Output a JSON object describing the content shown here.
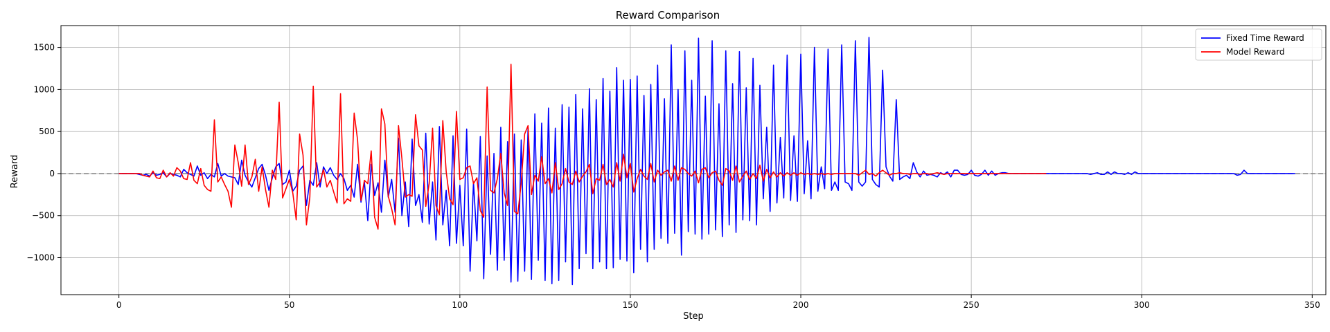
{
  "chart_data": {
    "type": "line",
    "title": "Reward Comparison",
    "xlabel": "Step",
    "ylabel": "Reward",
    "xlim": [
      -17,
      354
    ],
    "ylim": [
      -1440,
      1760
    ],
    "xticks": [
      0,
      50,
      100,
      150,
      200,
      250,
      300,
      350
    ],
    "yticks": [
      -1000,
      -500,
      0,
      500,
      1000,
      1500
    ],
    "grid": true,
    "legend_position": "top-right",
    "reference_line": {
      "y": 0,
      "style": "dashed",
      "color": "#808080"
    },
    "series": [
      {
        "name": "Fixed Time Reward",
        "color": "#0000ff",
        "x_start": 0,
        "values": [
          0,
          0,
          0,
          0,
          0,
          0,
          -10,
          -20,
          -10,
          -30,
          10,
          -20,
          -10,
          10,
          -40,
          0,
          -10,
          -20,
          -40,
          50,
          10,
          -10,
          -30,
          90,
          -20,
          10,
          -60,
          -10,
          -40,
          120,
          -30,
          0,
          -30,
          -40,
          -50,
          -130,
          160,
          -20,
          -100,
          -160,
          -50,
          60,
          110,
          -20,
          -200,
          -50,
          80,
          120,
          -130,
          -100,
          40,
          -210,
          -150,
          40,
          90,
          -380,
          -80,
          -140,
          130,
          -160,
          80,
          0,
          70,
          -20,
          -70,
          0,
          -60,
          -200,
          -140,
          -280,
          110,
          -340,
          -100,
          -560,
          110,
          -260,
          -110,
          -460,
          160,
          -280,
          -70,
          -460,
          420,
          -500,
          -100,
          -630,
          410,
          -380,
          -250,
          -580,
          480,
          -600,
          -100,
          -790,
          560,
          -610,
          -200,
          -860,
          450,
          -830,
          -140,
          -860,
          530,
          -1160,
          -100,
          -800,
          440,
          -1250,
          210,
          -960,
          240,
          -1150,
          550,
          -1030,
          380,
          -1290,
          470,
          -1280,
          400,
          -1160,
          540,
          -1260,
          710,
          -1030,
          600,
          -1270,
          780,
          -1310,
          540,
          -1270,
          820,
          -1050,
          790,
          -1320,
          940,
          -1130,
          770,
          -950,
          1010,
          -1130,
          880,
          -1050,
          1130,
          -1130,
          980,
          -1120,
          1260,
          -1020,
          1110,
          -1040,
          1120,
          -1180,
          1160,
          -900,
          930,
          -1050,
          1060,
          -900,
          1290,
          -770,
          890,
          -830,
          1530,
          -710,
          1000,
          -970,
          1460,
          -690,
          1110,
          -720,
          1610,
          -780,
          920,
          -720,
          1580,
          -670,
          830,
          -750,
          1460,
          -610,
          1070,
          -700,
          1450,
          -550,
          1020,
          -560,
          1370,
          -610,
          1050,
          -300,
          550,
          -450,
          1290,
          -350,
          430,
          -290,
          1410,
          -320,
          450,
          -330,
          1420,
          -240,
          390,
          -300,
          1500,
          -210,
          80,
          -180,
          1480,
          -200,
          -100,
          -200,
          1530,
          -100,
          -120,
          -200,
          1580,
          -100,
          -150,
          -100,
          1620,
          -70,
          -130,
          -160,
          1230,
          80,
          -30,
          -90,
          880,
          -70,
          -40,
          -20,
          -60,
          130,
          20,
          -40,
          30,
          -20,
          -10,
          -20,
          -40,
          10,
          -10,
          20,
          -40,
          40,
          40,
          -10,
          -20,
          -10,
          40,
          -20,
          -30,
          -10,
          40,
          -20,
          30,
          -20,
          0,
          10,
          10,
          0,
          0,
          0,
          0,
          0,
          0,
          0,
          0,
          0,
          0,
          0,
          0,
          0,
          0,
          0,
          0,
          0,
          0,
          0,
          0,
          0,
          0,
          0,
          0,
          -10,
          0,
          10,
          -10,
          -10,
          20,
          -10,
          20,
          0,
          0,
          -10,
          10,
          -10,
          20,
          0,
          0,
          0,
          0,
          0,
          0,
          0,
          0,
          0,
          0,
          0,
          0,
          0,
          0,
          0,
          0,
          0,
          0,
          0,
          0,
          0,
          0,
          0,
          0,
          0,
          0,
          0,
          0,
          0,
          -20,
          -10,
          40,
          0,
          0,
          0,
          0,
          0,
          0,
          0,
          0,
          0,
          0,
          0,
          0,
          0,
          0,
          0
        ]
      },
      {
        "name": "Model Reward",
        "color": "#ff0000",
        "x_start": 0,
        "values": [
          0,
          0,
          0,
          0,
          0,
          0,
          0,
          -20,
          -30,
          -40,
          30,
          -50,
          -60,
          40,
          -40,
          10,
          -30,
          70,
          30,
          -60,
          -70,
          130,
          -80,
          -120,
          60,
          -140,
          -190,
          -210,
          640,
          -100,
          -40,
          -130,
          -210,
          -400,
          340,
          130,
          -150,
          340,
          -130,
          -40,
          170,
          -210,
          80,
          -190,
          -400,
          40,
          -70,
          850,
          -290,
          -180,
          -70,
          -230,
          -550,
          470,
          220,
          -610,
          -280,
          1040,
          -160,
          -100,
          50,
          -160,
          -80,
          -220,
          -350,
          950,
          -360,
          -300,
          -330,
          720,
          400,
          -320,
          -80,
          -120,
          270,
          -520,
          -660,
          770,
          590,
          -270,
          -420,
          -610,
          570,
          180,
          -280,
          -250,
          -270,
          700,
          330,
          280,
          -390,
          -120,
          540,
          -380,
          -490,
          630,
          20,
          -300,
          -370,
          740,
          -70,
          -50,
          70,
          90,
          -120,
          -50,
          -440,
          -520,
          1030,
          -200,
          -230,
          -60,
          240,
          -230,
          -380,
          1300,
          -450,
          -480,
          -110,
          470,
          570,
          -250,
          -20,
          -90,
          200,
          -120,
          -60,
          -230,
          130,
          -190,
          -120,
          60,
          -100,
          -130,
          30,
          -100,
          -30,
          20,
          110,
          -240,
          -60,
          -80,
          110,
          -130,
          -70,
          -160,
          130,
          -90,
          230,
          -50,
          120,
          -220,
          -60,
          50,
          -30,
          -70,
          120,
          -100,
          40,
          -20,
          20,
          40,
          -90,
          90,
          -80,
          70,
          50,
          0,
          -30,
          30,
          -110,
          50,
          70,
          -50,
          10,
          30,
          -80,
          -140,
          60,
          30,
          -80,
          90,
          -100,
          -30,
          30,
          -70,
          0,
          -60,
          100,
          -90,
          50,
          -50,
          20,
          -40,
          10,
          -30,
          10,
          -20,
          10,
          -20,
          10,
          -10,
          0,
          -10,
          0,
          -10,
          0,
          -10,
          0,
          -10,
          0,
          0,
          0,
          0,
          0,
          0,
          0,
          -20,
          10,
          40,
          -10,
          0,
          -30,
          10,
          40,
          10,
          -20,
          0,
          0,
          10,
          0,
          0,
          -10,
          0,
          0,
          -10,
          0,
          0,
          -10,
          0,
          10,
          0,
          -10,
          0,
          0,
          0,
          0,
          0,
          0,
          0,
          0,
          0,
          0,
          0,
          0,
          0,
          0,
          0,
          0,
          0,
          0,
          0,
          0,
          0,
          0,
          0,
          0,
          0,
          0,
          0,
          0,
          0,
          0
        ]
      }
    ]
  }
}
